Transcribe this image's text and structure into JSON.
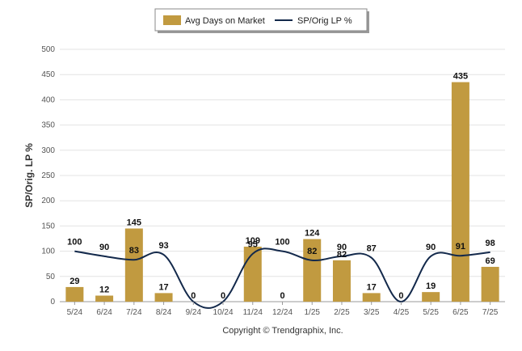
{
  "chart_data": {
    "type": "bar",
    "categories": [
      "5/24",
      "6/24",
      "7/24",
      "8/24",
      "9/24",
      "10/24",
      "11/24",
      "12/24",
      "1/25",
      "2/25",
      "3/25",
      "4/25",
      "5/25",
      "6/25",
      "7/25"
    ],
    "series": [
      {
        "name": "Avg Days on Market",
        "type": "bar",
        "color": "#C19A40",
        "values": [
          29,
          12,
          145,
          17,
          0,
          0,
          109,
          0,
          124,
          82,
          17,
          0,
          19,
          435,
          69
        ]
      },
      {
        "name": "SP/Orig LP %",
        "type": "line",
        "color": "#13294B",
        "values": [
          100,
          90,
          83,
          93,
          0,
          0,
          95,
          100,
          82,
          90,
          87,
          0,
          90,
          91,
          98
        ]
      }
    ],
    "ylabel": "SP/Orig. LP %",
    "xlabel": "",
    "ylim": [
      0,
      500
    ],
    "yticks": [
      0,
      50,
      100,
      150,
      200,
      250,
      300,
      350,
      400,
      450,
      500
    ],
    "grid": true,
    "legend": "top-center"
  },
  "footer": {
    "copyright": "Copyright © Trendgraphix, Inc."
  }
}
